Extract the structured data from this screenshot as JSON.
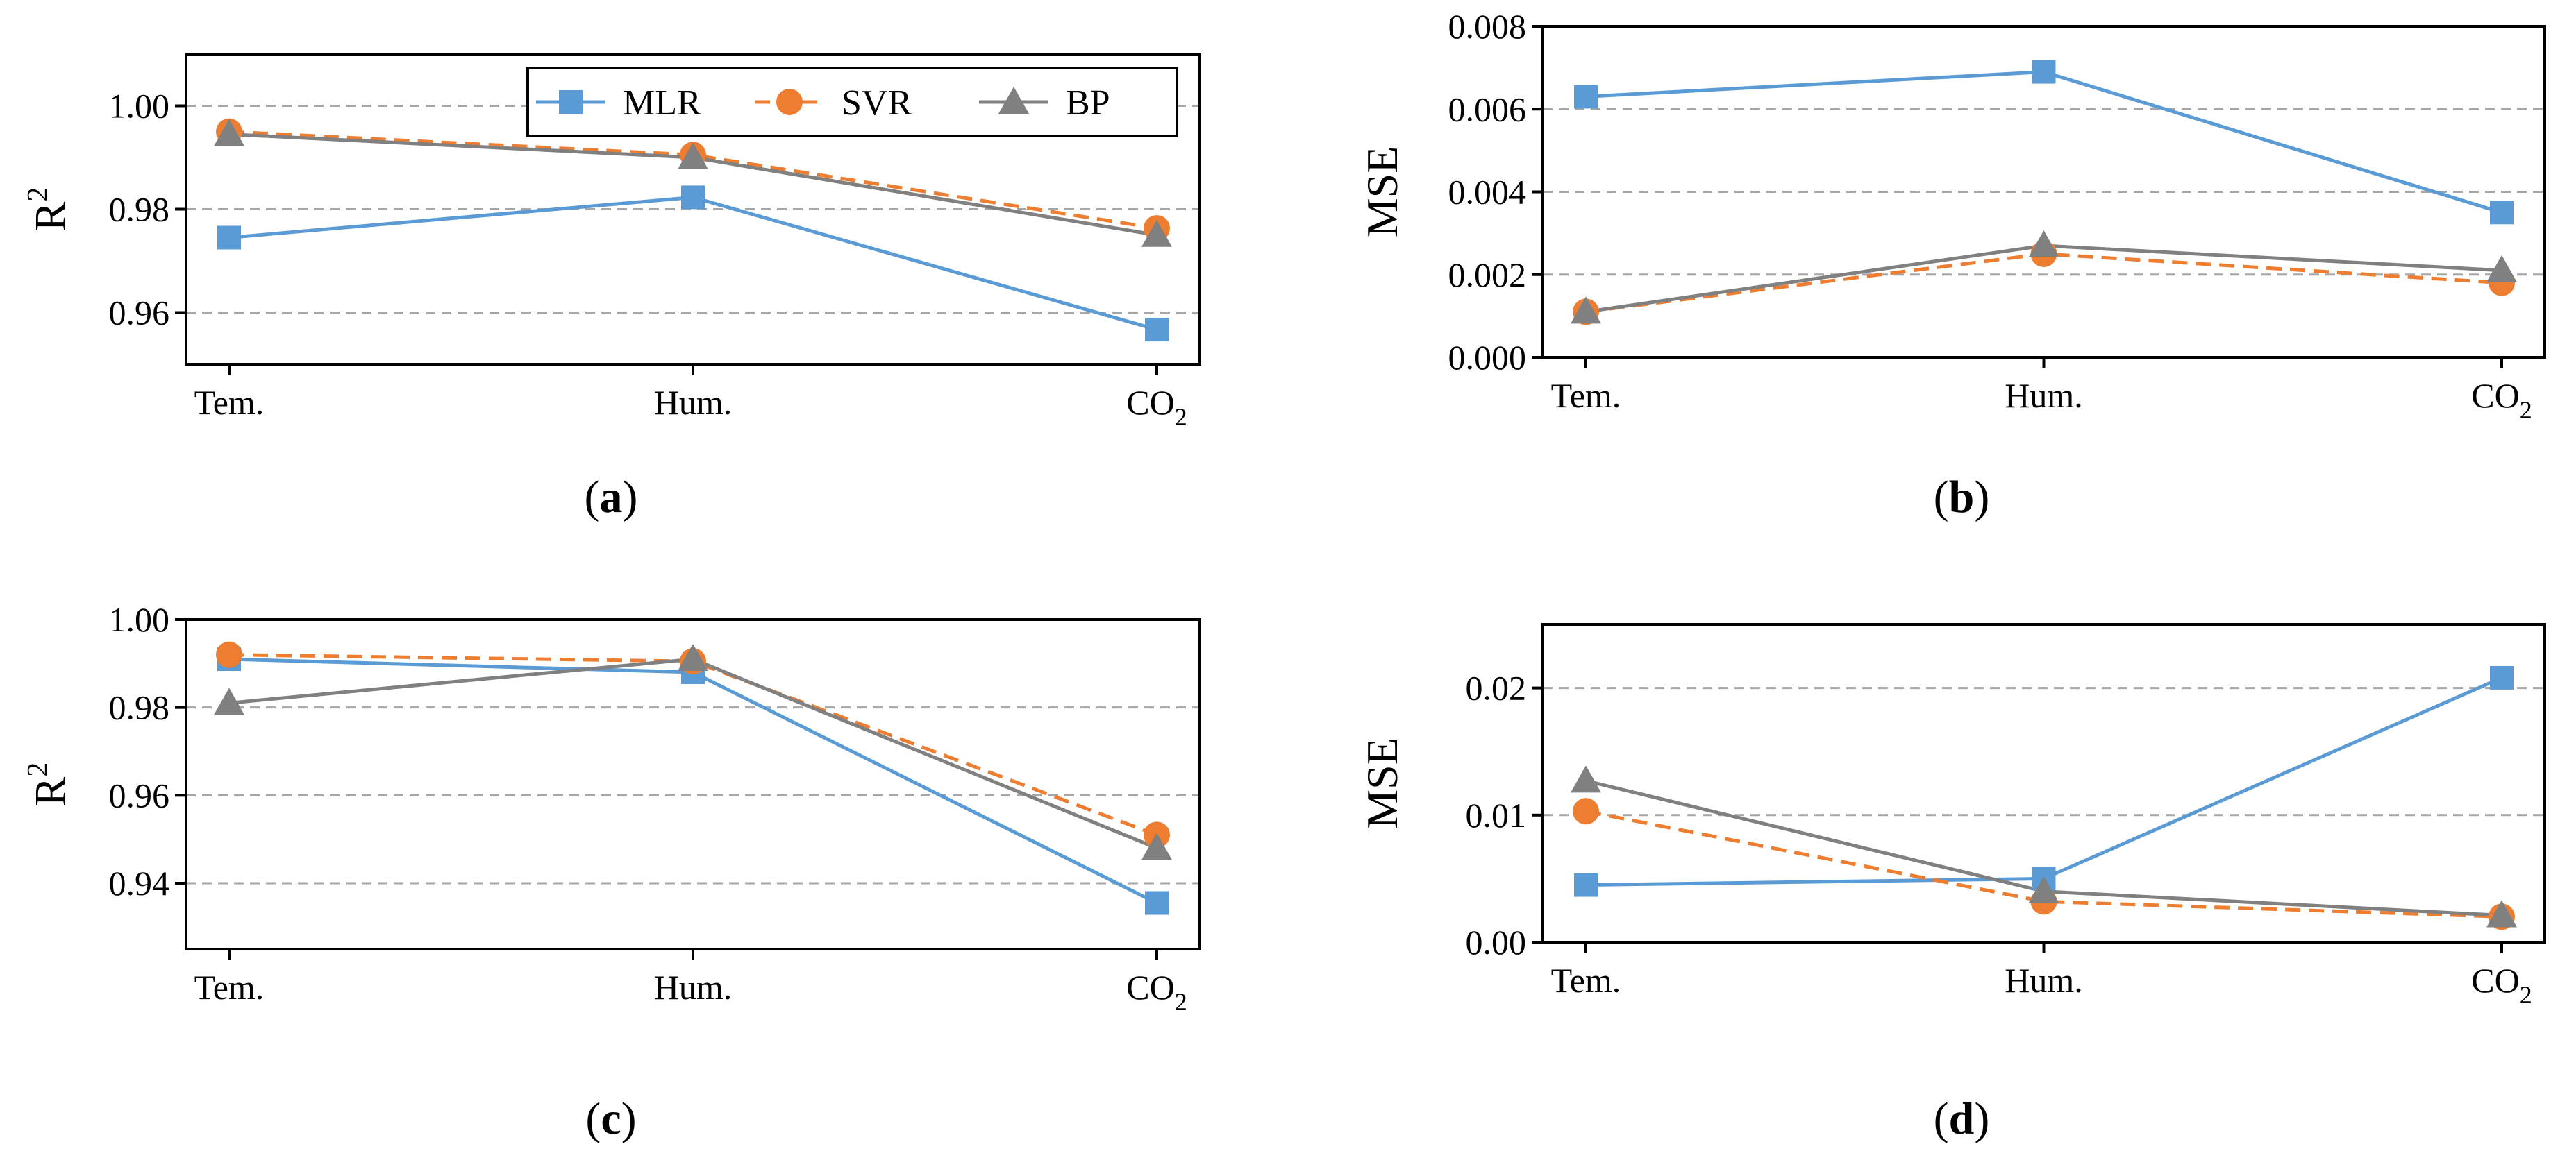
{
  "figure": {
    "background": "#ffffff"
  },
  "colors": {
    "MLR": "#5b9bd5",
    "SVR": "#ed7d31",
    "BP": "#808080",
    "grid": "#a6a6a6",
    "axis": "#000000"
  },
  "legend": [
    {
      "series": "MLR",
      "label": "MLR",
      "marker": "square",
      "dash": "solid"
    },
    {
      "series": "SVR",
      "label": "SVR",
      "marker": "circle",
      "dash": "dashed"
    },
    {
      "series": "BP",
      "label": "BP",
      "marker": "triangle",
      "dash": "solid"
    }
  ],
  "chart_data": [
    {
      "id": "a",
      "type": "line",
      "panel_label": "(a)",
      "categories": [
        "Tem.",
        "Hum.",
        "CO2"
      ],
      "category_labels": [
        {
          "base": "Tem.",
          "sub": ""
        },
        {
          "base": "Hum.",
          "sub": ""
        },
        {
          "base": "CO",
          "sub": "2"
        }
      ],
      "ylabel": {
        "base": "R",
        "sup": "2"
      },
      "ylim": [
        0.95,
        1.01
      ],
      "yticks": [
        0.96,
        0.98,
        1.0
      ],
      "ytick_labels": [
        "0.96",
        "0.98",
        "1.00"
      ],
      "grid": true,
      "legend_position": "top-right",
      "series": [
        {
          "name": "MLR",
          "values": [
            0.9745,
            0.9823,
            0.9567
          ]
        },
        {
          "name": "SVR",
          "values": [
            0.995,
            0.9905,
            0.9763
          ]
        },
        {
          "name": "BP",
          "values": [
            0.9945,
            0.99,
            0.975
          ]
        }
      ]
    },
    {
      "id": "b",
      "type": "line",
      "panel_label": "(b)",
      "categories": [
        "Tem.",
        "Hum.",
        "CO2"
      ],
      "category_labels": [
        {
          "base": "Tem.",
          "sub": ""
        },
        {
          "base": "Hum.",
          "sub": ""
        },
        {
          "base": "CO",
          "sub": "2"
        }
      ],
      "ylabel": {
        "base": "MSE",
        "sup": ""
      },
      "ylim": [
        0.0,
        0.008
      ],
      "yticks": [
        0.0,
        0.002,
        0.004,
        0.006,
        0.008
      ],
      "ytick_labels": [
        "0.000",
        "0.002",
        "0.004",
        "0.006",
        "0.008"
      ],
      "grid": true,
      "series": [
        {
          "name": "MLR",
          "values": [
            0.0063,
            0.0069,
            0.0035
          ]
        },
        {
          "name": "SVR",
          "values": [
            0.0011,
            0.0025,
            0.0018
          ]
        },
        {
          "name": "BP",
          "values": [
            0.0011,
            0.0027,
            0.0021
          ]
        }
      ]
    },
    {
      "id": "c",
      "type": "line",
      "panel_label": "(c)",
      "categories": [
        "Tem.",
        "Hum.",
        "CO2"
      ],
      "category_labels": [
        {
          "base": "Tem.",
          "sub": ""
        },
        {
          "base": "Hum.",
          "sub": ""
        },
        {
          "base": "CO",
          "sub": "2"
        }
      ],
      "ylabel": {
        "base": "R",
        "sup": "2"
      },
      "ylim": [
        0.925,
        1.0
      ],
      "yticks": [
        0.94,
        0.96,
        0.98,
        1.0
      ],
      "ytick_labels": [
        "0.94",
        "0.96",
        "0.98",
        "1.00"
      ],
      "grid": true,
      "series": [
        {
          "name": "MLR",
          "values": [
            0.991,
            0.988,
            0.9355
          ]
        },
        {
          "name": "SVR",
          "values": [
            0.992,
            0.9905,
            0.951
          ]
        },
        {
          "name": "BP",
          "values": [
            0.981,
            0.991,
            0.948
          ]
        }
      ]
    },
    {
      "id": "d",
      "type": "line",
      "panel_label": "(d)",
      "categories": [
        "Tem.",
        "Hum.",
        "CO2"
      ],
      "category_labels": [
        {
          "base": "Tem.",
          "sub": ""
        },
        {
          "base": "Hum.",
          "sub": ""
        },
        {
          "base": "CO",
          "sub": "2"
        }
      ],
      "ylabel": {
        "base": "MSE",
        "sup": ""
      },
      "ylim": [
        0.0,
        0.025
      ],
      "yticks": [
        0.0,
        0.01,
        0.02
      ],
      "ytick_labels": [
        "0.00",
        "0.01",
        "0.02"
      ],
      "grid": true,
      "series": [
        {
          "name": "MLR",
          "values": [
            0.0045,
            0.005,
            0.0208
          ]
        },
        {
          "name": "SVR",
          "values": [
            0.0103,
            0.0032,
            0.002
          ]
        },
        {
          "name": "BP",
          "values": [
            0.0127,
            0.004,
            0.0021
          ]
        }
      ]
    }
  ]
}
